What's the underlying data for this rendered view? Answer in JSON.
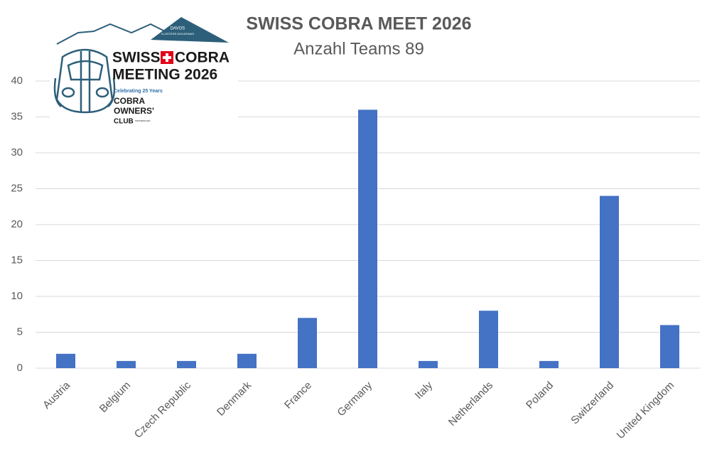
{
  "chart_data": {
    "type": "bar",
    "title": "SWISS COBRA MEET 2026",
    "subtitle": "Anzahl Teams 89",
    "categories": [
      "Austria",
      "Belgium",
      "Czech Republic",
      "Denmark",
      "France",
      "Germany",
      "Italy",
      "Netherlands",
      "Poland",
      "Switzerland",
      "United Kingdom"
    ],
    "values": [
      2,
      1,
      1,
      2,
      7,
      36,
      1,
      8,
      1,
      24,
      6
    ],
    "color": "#4472c4",
    "ylim": [
      0,
      40
    ],
    "yticks": [
      0,
      5,
      10,
      15,
      20,
      25,
      30,
      35,
      40
    ],
    "grid": true
  },
  "logo": {
    "swiss": "SWISS",
    "cobra": "COBRA",
    "meeting": "MEETING 2026",
    "celebrating": "Celebrating 25 Years",
    "club_cobra": "COBRA",
    "owners": "OWNERS'",
    "club": "CLUB",
    "country": "SWITZERLAND",
    "davos": "DAVOS",
    "klosters": "KLOSTERS MOUNTAINS"
  }
}
